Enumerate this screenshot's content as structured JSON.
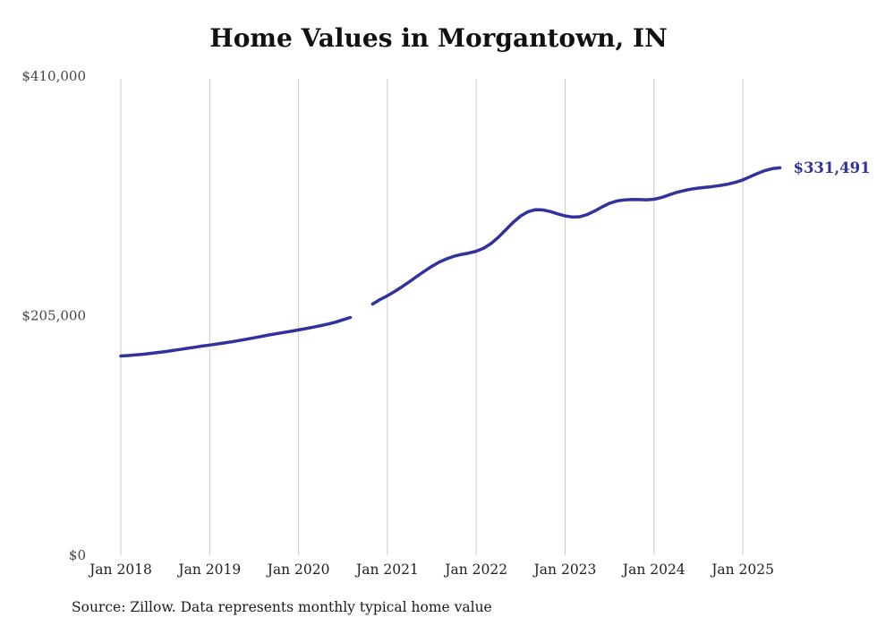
{
  "chart_data": {
    "type": "line",
    "title": "Home Values in Morgantown, IN",
    "source_note": "Source: Zillow. Data represents monthly typical home value",
    "end_label": "$331,491",
    "end_value": 331491,
    "line_color": "#32329f",
    "grid_color": "#cccccc",
    "ylim": [
      0,
      410000
    ],
    "legend": "none",
    "grid": "vertical-only",
    "y_ticks": [
      {
        "value": 410000,
        "label": "$410,000"
      },
      {
        "value": 205000,
        "label": "$205,000"
      },
      {
        "value": 0,
        "label": "$0"
      }
    ],
    "x_tick_labels": [
      "Jan 2018",
      "Jan 2019",
      "Jan 2020",
      "Jan 2021",
      "Jan 2022",
      "Jan 2023",
      "Jan 2024",
      "Jan 2025"
    ],
    "start_month": "2018-01",
    "frequency": "monthly",
    "gap_note": "no data Sep 2020 - Oct 2020",
    "values": [
      170500,
      170900,
      171400,
      172000,
      172700,
      173500,
      174300,
      175200,
      176100,
      177100,
      178000,
      179000,
      179900,
      180800,
      181700,
      182700,
      183800,
      184900,
      186100,
      187300,
      188500,
      189600,
      190700,
      191700,
      192800,
      194000,
      195200,
      196500,
      197900,
      199500,
      201500,
      203500,
      null,
      null,
      215000,
      218800,
      222000,
      225800,
      229800,
      234200,
      238700,
      243100,
      247200,
      250800,
      253700,
      255900,
      257400,
      258600,
      260200,
      262800,
      266800,
      272200,
      278600,
      285000,
      290400,
      294000,
      295700,
      295500,
      294100,
      292100,
      290400,
      289400,
      289700,
      291600,
      294600,
      298100,
      301200,
      303200,
      304100,
      304400,
      304300,
      304200,
      304600,
      306100,
      308300,
      310400,
      312000,
      313300,
      314200,
      314900,
      315600,
      316500,
      317600,
      319100,
      321200,
      324000,
      326800,
      329200,
      330800,
      331491
    ]
  }
}
